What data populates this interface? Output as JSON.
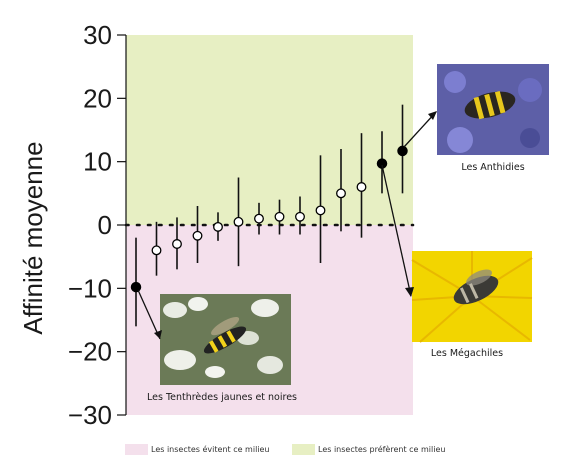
{
  "chart_data": {
    "type": "scatter",
    "ylabel": "Affinité moyenne",
    "ylim": [
      -30,
      30
    ],
    "yticks": [
      30,
      20,
      10,
      0,
      -10,
      -20,
      -30
    ],
    "grid": false,
    "points": [
      {
        "y": -9.8,
        "low": -16.0,
        "high": -2.0,
        "filled": true
      },
      {
        "y": -4.0,
        "low": -8.0,
        "high": 0.5,
        "filled": false
      },
      {
        "y": -3.0,
        "low": -7.0,
        "high": 1.2,
        "filled": false
      },
      {
        "y": -1.7,
        "low": -6.0,
        "high": 3.0,
        "filled": false
      },
      {
        "y": -0.3,
        "low": -2.5,
        "high": 2.0,
        "filled": false
      },
      {
        "y": 0.5,
        "low": -6.5,
        "high": 7.5,
        "filled": false
      },
      {
        "y": 1.0,
        "low": -1.5,
        "high": 3.5,
        "filled": false
      },
      {
        "y": 1.3,
        "low": -1.5,
        "high": 4.0,
        "filled": false
      },
      {
        "y": 1.3,
        "low": -1.5,
        "high": 4.5,
        "filled": false
      },
      {
        "y": 2.3,
        "low": -6.0,
        "high": 11.0,
        "filled": false
      },
      {
        "y": 5.0,
        "low": -1.0,
        "high": 12.0,
        "filled": false
      },
      {
        "y": 6.0,
        "low": -2.0,
        "high": 14.5,
        "filled": false
      },
      {
        "y": 9.7,
        "low": 5.0,
        "high": 14.8,
        "filled": true
      },
      {
        "y": 11.7,
        "low": 5.0,
        "high": 19.0,
        "filled": true
      }
    ],
    "zones": {
      "positive_color": "#e7efc3",
      "negative_color": "#f4e0ec"
    },
    "annotations": [
      {
        "label": "Les Tenthrèdes jaunes et noires",
        "point_index": 0
      },
      {
        "label": "Les Anthidies",
        "point_index": 13
      },
      {
        "label": "Les Mégachiles",
        "point_index": 12
      }
    ],
    "legend": [
      {
        "label": "Les insectes évitent ce milieu",
        "color": "#f4e0ec"
      },
      {
        "label": "Les insectes préfèrent ce milieu",
        "color": "#e7efc3"
      }
    ],
    "legend_position": "bottom"
  }
}
